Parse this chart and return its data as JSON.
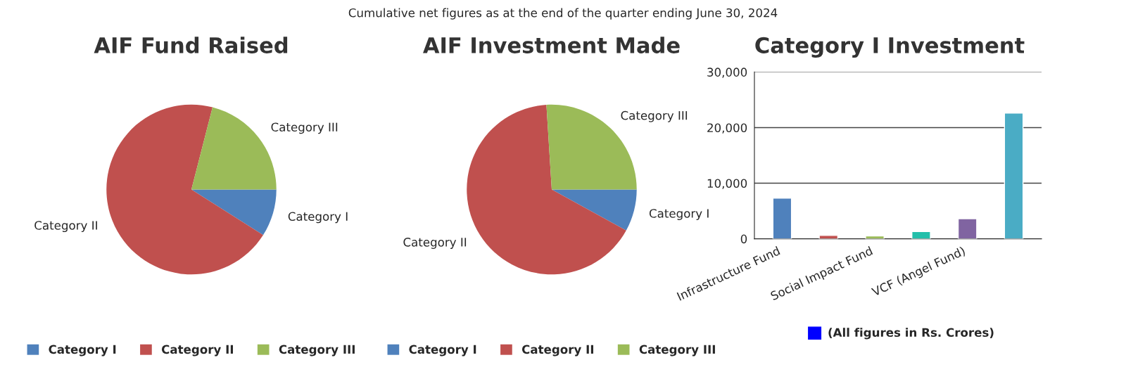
{
  "chart_data": [
    {
      "type": "pie",
      "title": "AIF Fund Raised",
      "annotations": [
        "Cumulative net figures as at the end of the quarter ending June 30, 2024"
      ],
      "categories": [
        "Category I",
        "Category II",
        "Category III"
      ],
      "values": [
        9,
        70,
        21
      ],
      "colors": [
        "#4f81bc",
        "#c0504e",
        "#9bbb58"
      ],
      "legend": "bottom"
    },
    {
      "type": "pie",
      "title": "AIF Investment Made",
      "categories": [
        "Category I",
        "Category II",
        "Category III"
      ],
      "values": [
        8,
        66,
        26
      ],
      "colors": [
        "#4f81bc",
        "#c0504e",
        "#9bbb58"
      ],
      "legend": "bottom"
    },
    {
      "type": "bar",
      "title": "Category I Investment",
      "categories": [
        "Infrastructure Fund",
        null,
        "Social Impact Fund",
        null,
        "VCF (Angel Fund)",
        null
      ],
      "annotations": [
        "(All figures in Rs. Crores)"
      ],
      "series": [
        {
          "colors": [
            "#4f81bc",
            "#c0504e",
            "#9bbb58",
            "#23bfaa",
            "#8064a1",
            "#4aacc5"
          ],
          "values": [
            7300,
            600,
            500,
            1300,
            3600,
            22600
          ]
        }
      ],
      "ylim": [
        0,
        30000
      ],
      "yticks": [
        {
          "value": 0,
          "label": "0"
        },
        {
          "value": 10000,
          "label": "10,000"
        },
        {
          "value": 20000,
          "label": "20,000"
        },
        {
          "value": 30000,
          "label": "30,000"
        }
      ],
      "grid": "y"
    }
  ]
}
